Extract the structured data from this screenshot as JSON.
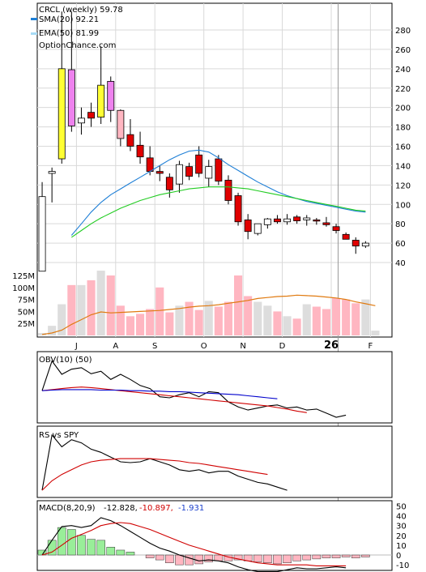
{
  "chart_data": {
    "type": "candlestick",
    "legend": {
      "title": "CRCL (weekly) 59.78",
      "sma": "SMA(20) 92.21",
      "ema": "EMA(50) 81.99",
      "source": "OptionChance.com"
    },
    "colors": {
      "up": "#ffffff",
      "down": "#e00000",
      "spike_up": "#ffff33",
      "spike_down": "#ee82ee",
      "pink": "#ffb6c1",
      "sma": "#1e7fd6",
      "ema": "#22cc22",
      "vol_up": "#dddddd",
      "vol_down": "#ffb6c1",
      "vol_ma": "#e07a10",
      "signal": "#d00000",
      "obv_ma2": "#0000cc",
      "hist_pos": "#99ee99",
      "hist_neg": "#ffb6c1"
    },
    "price_axis": {
      "min": 40,
      "max": 290,
      "ticks": [
        40,
        60,
        80,
        100,
        120,
        140,
        160,
        180,
        200,
        220,
        240,
        260,
        280
      ]
    },
    "volume_axis": {
      "ticks": [
        "25M",
        "50M",
        "75M",
        "100M",
        "125M"
      ],
      "values": [
        25,
        50,
        75,
        100,
        125
      ],
      "max": 135
    },
    "x_labels": [
      {
        "label": "J",
        "week": 4
      },
      {
        "label": "A",
        "week": 8
      },
      {
        "label": "S",
        "week": 12
      },
      {
        "label": "O",
        "week": 17
      },
      {
        "label": "N",
        "week": 21
      },
      {
        "label": "D",
        "week": 25
      },
      {
        "label": "26",
        "week": 30
      },
      {
        "label": "F",
        "week": 34
      }
    ],
    "year_marker_week": 30.7,
    "candles": [
      {
        "o": 31,
        "h": 123,
        "l": 31,
        "c": 108,
        "col": "up"
      },
      {
        "o": 132,
        "h": 138,
        "l": 102,
        "c": 134,
        "col": "up"
      },
      {
        "o": 147,
        "h": 299,
        "l": 142,
        "c": 240,
        "col": "spike_up"
      },
      {
        "o": 239,
        "h": 299,
        "l": 175,
        "c": 181,
        "col": "spike_down"
      },
      {
        "o": 184,
        "h": 200,
        "l": 172,
        "c": 189,
        "col": "up"
      },
      {
        "o": 195,
        "h": 205,
        "l": 180,
        "c": 189,
        "col": "down"
      },
      {
        "o": 190,
        "h": 263,
        "l": 183,
        "c": 223,
        "col": "spike_up"
      },
      {
        "o": 227,
        "h": 232,
        "l": 185,
        "c": 197,
        "col": "spike_down"
      },
      {
        "o": 197,
        "h": 198,
        "l": 160,
        "c": 168,
        "col": "pink"
      },
      {
        "o": 172,
        "h": 188,
        "l": 155,
        "c": 160,
        "col": "down"
      },
      {
        "o": 161,
        "h": 175,
        "l": 142,
        "c": 149,
        "col": "down"
      },
      {
        "o": 148,
        "h": 160,
        "l": 130,
        "c": 134,
        "col": "down"
      },
      {
        "o": 134,
        "h": 140,
        "l": 124,
        "c": 132,
        "col": "down"
      },
      {
        "o": 128,
        "h": 132,
        "l": 107,
        "c": 115,
        "col": "down"
      },
      {
        "o": 121,
        "h": 145,
        "l": 112,
        "c": 141,
        "col": "up"
      },
      {
        "o": 139,
        "h": 143,
        "l": 125,
        "c": 129,
        "col": "down"
      },
      {
        "o": 151,
        "h": 160,
        "l": 128,
        "c": 132,
        "col": "down"
      },
      {
        "o": 127,
        "h": 146,
        "l": 118,
        "c": 139,
        "col": "up"
      },
      {
        "o": 147,
        "h": 151,
        "l": 120,
        "c": 124,
        "col": "down"
      },
      {
        "o": 125,
        "h": 130,
        "l": 100,
        "c": 104,
        "col": "down"
      },
      {
        "o": 109,
        "h": 112,
        "l": 78,
        "c": 82,
        "col": "down"
      },
      {
        "o": 84,
        "h": 90,
        "l": 64,
        "c": 72,
        "col": "down"
      },
      {
        "o": 70,
        "h": 80,
        "l": 68,
        "c": 80,
        "col": "up"
      },
      {
        "o": 79,
        "h": 86,
        "l": 75,
        "c": 85,
        "col": "up"
      },
      {
        "o": 85,
        "h": 89,
        "l": 80,
        "c": 82,
        "col": "down"
      },
      {
        "o": 82,
        "h": 90,
        "l": 79,
        "c": 85,
        "col": "up"
      },
      {
        "o": 87,
        "h": 89,
        "l": 80,
        "c": 83,
        "col": "down"
      },
      {
        "o": 84,
        "h": 89,
        "l": 78,
        "c": 86,
        "col": "up"
      },
      {
        "o": 83,
        "h": 86,
        "l": 79,
        "c": 84,
        "col": "down"
      },
      {
        "o": 81,
        "h": 87,
        "l": 77,
        "c": 79,
        "col": "down"
      },
      {
        "o": 77,
        "h": 80,
        "l": 70,
        "c": 73,
        "col": "down"
      },
      {
        "o": 69,
        "h": 71,
        "l": 64,
        "c": 64,
        "col": "down"
      },
      {
        "o": 63,
        "h": 66,
        "l": 49,
        "c": 57,
        "col": "down"
      },
      {
        "o": 57,
        "h": 62,
        "l": 55,
        "c": 60,
        "col": "up"
      }
    ],
    "sma": [
      [
        0,
        68
      ],
      [
        1,
        80
      ],
      [
        2,
        92
      ],
      [
        3,
        102
      ],
      [
        4,
        110
      ],
      [
        5,
        116
      ],
      [
        6,
        122
      ],
      [
        7,
        128
      ],
      [
        8,
        134
      ],
      [
        9,
        140
      ],
      [
        10,
        146
      ],
      [
        11,
        151
      ],
      [
        12,
        155
      ],
      [
        13,
        156
      ],
      [
        14,
        154
      ],
      [
        15,
        148
      ],
      [
        16,
        141
      ],
      [
        17,
        135
      ],
      [
        18,
        129
      ],
      [
        19,
        123
      ],
      [
        20,
        118
      ],
      [
        21,
        113
      ],
      [
        22,
        109
      ],
      [
        23,
        106
      ],
      [
        24,
        103
      ],
      [
        25,
        101
      ],
      [
        26,
        99
      ],
      [
        27,
        97
      ],
      [
        28,
        95
      ],
      [
        29,
        93
      ],
      [
        30,
        92
      ]
    ],
    "ema": [
      [
        0,
        66
      ],
      [
        1,
        73
      ],
      [
        2,
        80
      ],
      [
        3,
        86
      ],
      [
        4,
        91
      ],
      [
        5,
        96
      ],
      [
        6,
        100
      ],
      [
        7,
        104
      ],
      [
        8,
        107
      ],
      [
        9,
        110
      ],
      [
        10,
        112
      ],
      [
        11,
        114
      ],
      [
        12,
        116
      ],
      [
        13,
        117
      ],
      [
        14,
        118
      ],
      [
        15,
        118
      ],
      [
        16,
        118
      ],
      [
        17,
        117
      ],
      [
        18,
        116
      ],
      [
        19,
        114
      ],
      [
        20,
        112
      ],
      [
        21,
        110
      ],
      [
        22,
        108
      ],
      [
        23,
        106
      ],
      [
        24,
        104
      ],
      [
        25,
        102
      ],
      [
        26,
        100
      ],
      [
        27,
        98
      ],
      [
        28,
        96
      ],
      [
        29,
        94
      ],
      [
        30,
        93
      ]
    ],
    "volume": [
      5,
      20,
      65,
      105,
      105,
      115,
      135,
      125,
      62,
      40,
      45,
      55,
      100,
      48,
      62,
      70,
      53,
      72,
      60,
      70,
      125,
      82,
      70,
      62,
      50,
      40,
      35,
      65,
      60,
      55,
      78,
      75,
      67,
      75,
      10
    ],
    "vol_ma": [
      2,
      5,
      11,
      23,
      33,
      43,
      49,
      47,
      48,
      49,
      50,
      51,
      52,
      54,
      56,
      59,
      61,
      62,
      64,
      67,
      70,
      73,
      77,
      79,
      81,
      82,
      84,
      83,
      82,
      80,
      78,
      75,
      70,
      66,
      62
    ],
    "obv": [
      0,
      58,
      32,
      42,
      45,
      33,
      38,
      22,
      32,
      22,
      10,
      4,
      -12,
      -14,
      -8,
      -4,
      -12,
      -2,
      -4,
      -22,
      -32,
      -38,
      -34,
      -30,
      -28,
      -34,
      -32,
      -38,
      -36,
      -44,
      -52,
      -48
    ],
    "obv_ma1": [
      0,
      2,
      4,
      6,
      7,
      6,
      4,
      2,
      0,
      -2,
      -4,
      -6,
      -8,
      -10,
      -12,
      -14,
      -16,
      -18,
      -20,
      -22,
      -24,
      -26,
      -28,
      -30,
      -33,
      -36,
      -40,
      -43
    ],
    "obv_ma2": [
      0,
      1,
      2,
      2,
      2,
      2,
      1,
      1,
      1,
      0,
      0,
      -1,
      -1,
      -2,
      -2,
      -3,
      -4,
      -5,
      -6,
      -7,
      -8,
      -10,
      -12,
      -14,
      -16
    ],
    "rs": [
      0,
      70,
      55,
      64,
      60,
      52,
      48,
      42,
      36,
      35,
      36,
      40,
      36,
      32,
      26,
      24,
      26,
      22,
      24,
      24,
      18,
      14,
      10,
      8,
      4,
      0
    ],
    "rs_ma": [
      0,
      12,
      20,
      26,
      32,
      36,
      38,
      39,
      40,
      40,
      40,
      40,
      39,
      38,
      37,
      35,
      34,
      32,
      30,
      28,
      26,
      24,
      22,
      20
    ],
    "macd_labels": {
      "name": "MACD(8,20,9)",
      "macd": "-12.828,",
      "signal": "-10.897,",
      "hist": "-1.931"
    },
    "macd_axis": {
      "min": -14,
      "max": 52,
      "ticks": [
        -10,
        0,
        10,
        20,
        30,
        40,
        50
      ]
    },
    "macd": [
      0,
      15,
      29,
      30,
      28,
      30,
      38,
      35,
      30,
      24,
      18,
      12,
      7,
      4,
      0,
      -3,
      -6,
      -5,
      -6,
      -8,
      -12,
      -15,
      -17,
      -17,
      -17,
      -15,
      -13,
      -14,
      -14,
      -13,
      -12,
      -13
    ],
    "signal": [
      0,
      3,
      10,
      17,
      21,
      25,
      30,
      32,
      33,
      32,
      29,
      26,
      22,
      18,
      14,
      10,
      7,
      4,
      1,
      -2,
      -4,
      -6,
      -8,
      -9,
      -10,
      -10,
      -10,
      -10,
      -11,
      -11,
      -11,
      -11
    ],
    "hist": [
      5,
      15,
      28,
      26,
      20,
      16,
      15,
      8,
      5,
      3,
      0,
      -3,
      -5,
      -8,
      -10,
      -10,
      -9,
      -7,
      -6,
      -6,
      -5,
      -6,
      -7,
      -8,
      -9,
      -8,
      -6,
      -5,
      -4,
      -3,
      -3,
      -2,
      -3,
      -2
    ]
  },
  "obv_label": "OBV(10) (50)",
  "rs_label": "RS vs SPY"
}
